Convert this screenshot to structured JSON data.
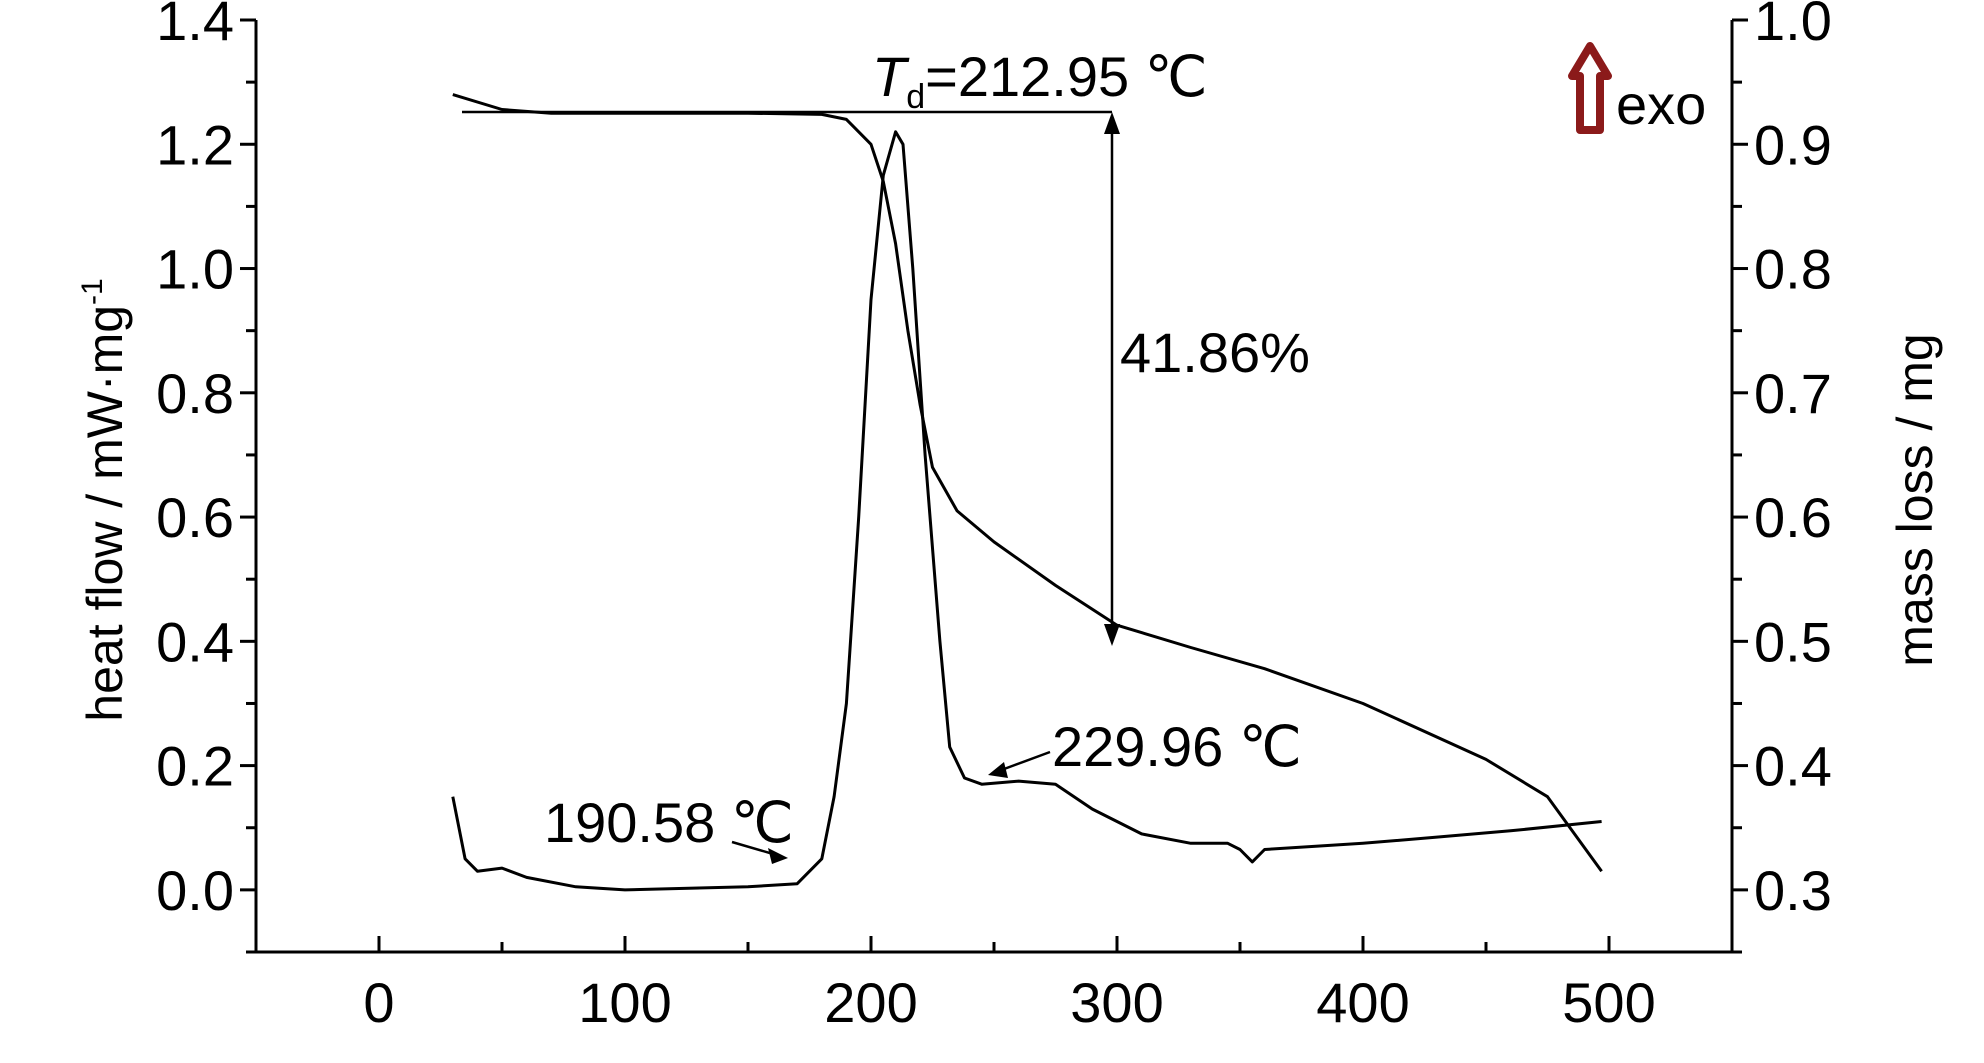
{
  "chart_data": {
    "type": "line",
    "xlim": [
      -50,
      550
    ],
    "ylim_left": [
      -0.1,
      1.4
    ],
    "ylim_right": [
      0.25,
      1.0
    ],
    "x_ticks": [
      "0",
      "100",
      "200",
      "300",
      "400",
      "500"
    ],
    "y_left_ticks": [
      "0.0",
      "0.2",
      "0.4",
      "0.6",
      "0.8",
      "1.0",
      "1.2",
      "1.4"
    ],
    "y_right_ticks": [
      "0.3",
      "0.4",
      "0.5",
      "0.6",
      "0.7",
      "0.8",
      "0.9",
      "1.0"
    ],
    "ylabel_left": "heat flow / mW·mg",
    "ylabel_left_sup": "-1",
    "ylabel_right": "mass loss / mg",
    "grid": false,
    "series": [
      {
        "axis": "left",
        "points": [
          [
            30,
            0.15
          ],
          [
            35,
            0.05
          ],
          [
            40,
            0.03
          ],
          [
            50,
            0.035
          ],
          [
            60,
            0.02
          ],
          [
            80,
            0.005
          ],
          [
            100,
            0.0
          ],
          [
            120,
            0.002
          ],
          [
            150,
            0.005
          ],
          [
            170,
            0.01
          ],
          [
            180,
            0.05
          ],
          [
            185,
            0.15
          ],
          [
            190,
            0.3
          ],
          [
            195,
            0.6
          ],
          [
            200,
            0.95
          ],
          [
            205,
            1.15
          ],
          [
            210,
            1.22
          ],
          [
            213,
            1.2
          ],
          [
            217,
            1.0
          ],
          [
            222,
            0.7
          ],
          [
            228,
            0.4
          ],
          [
            232,
            0.23
          ],
          [
            238,
            0.18
          ],
          [
            245,
            0.17
          ],
          [
            260,
            0.175
          ],
          [
            275,
            0.17
          ],
          [
            290,
            0.13
          ],
          [
            310,
            0.09
          ],
          [
            330,
            0.075
          ],
          [
            345,
            0.075
          ],
          [
            350,
            0.065
          ],
          [
            355,
            0.045
          ],
          [
            360,
            0.065
          ],
          [
            380,
            0.07
          ],
          [
            400,
            0.075
          ],
          [
            430,
            0.085
          ],
          [
            460,
            0.095
          ],
          [
            497,
            0.11
          ]
        ]
      },
      {
        "axis": "right",
        "points": [
          [
            30,
            0.94
          ],
          [
            50,
            0.928
          ],
          [
            70,
            0.925
          ],
          [
            100,
            0.925
          ],
          [
            150,
            0.925
          ],
          [
            180,
            0.924
          ],
          [
            190,
            0.92
          ],
          [
            200,
            0.9
          ],
          [
            205,
            0.87
          ],
          [
            210,
            0.82
          ],
          [
            215,
            0.75
          ],
          [
            220,
            0.69
          ],
          [
            225,
            0.64
          ],
          [
            235,
            0.605
          ],
          [
            250,
            0.58
          ],
          [
            275,
            0.545
          ],
          [
            300,
            0.513
          ],
          [
            330,
            0.495
          ],
          [
            360,
            0.478
          ],
          [
            400,
            0.45
          ],
          [
            450,
            0.405
          ],
          [
            475,
            0.375
          ],
          [
            497,
            0.315
          ]
        ]
      }
    ],
    "annotations": {
      "td_prefix": "T",
      "td_sub": "d",
      "td_value": "=212.95 ℃",
      "onset_label": "190.58 ℃",
      "endset_label": "229.96 ℃",
      "mass_loss_label": "41.86%",
      "exo_label": "exo",
      "exo_arrow_color": "#8b1a1a"
    }
  }
}
